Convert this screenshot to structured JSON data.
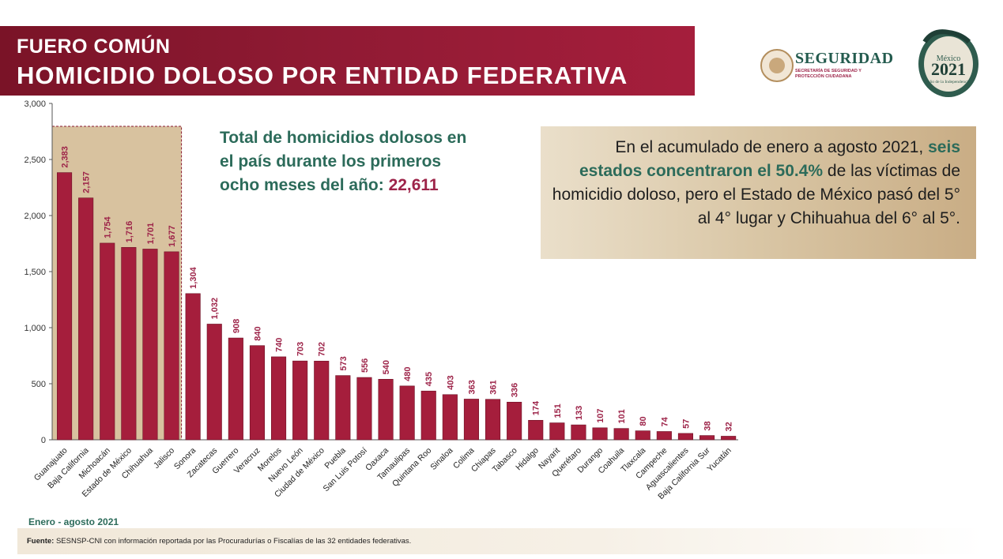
{
  "header": {
    "subtitle": "FUERO COMÚN",
    "title": "HOMICIDIO DOLOSO POR ENTIDAD FEDERATIVA"
  },
  "logos": {
    "seguridad_name": "SEGURIDAD",
    "seguridad_tagline": "SECRETARÍA DE SEGURIDAD Y PROTECCIÓN CIUDADANA",
    "mexico_label": "México",
    "year_label": "2021",
    "year_tagline": "Año de la Independencia"
  },
  "total_callout": {
    "text_before": "Total de homicidios dolosos en el país durante los primeros ocho meses del año: ",
    "total": "22,611"
  },
  "note": {
    "line_before": "En el acumulado de enero a agosto 2021,",
    "highlight": "seis estados concentraron el 50.4%",
    "line_after": " de las víctimas de homicidio doloso, pero el Estado de México pasó del 5° al 4° lugar y Chihuahua del 6° al 5°."
  },
  "footer": {
    "period": "Enero - agosto 2021",
    "source_label": "Fuente:",
    "source_text": " SESNSP-CNI con información reportada por las Procuradurías o Fiscalías de las 32 entidades federativas."
  },
  "colors": {
    "bar": "#a51e3c",
    "accent_green": "#2c6b5a",
    "highlight_box": "#d9c6a5"
  },
  "chart_data": {
    "type": "bar",
    "categories": [
      "Guanajuato",
      "Baja California",
      "Michoacán",
      "Estado de México",
      "Chihuahua",
      "Jalisco",
      "Sonora",
      "Zacatecas",
      "Guerrero",
      "Veracruz",
      "Morelos",
      "Nuevo León",
      "Ciudad de México",
      "Puebla",
      "San Luis Potosí",
      "Oaxaca",
      "Tamaulipas",
      "Quintana Roo",
      "Sinaloa",
      "Colima",
      "Chiapas",
      "Tabasco",
      "Hidalgo",
      "Nayarit",
      "Querétaro",
      "Durango",
      "Coahuila",
      "Tlaxcala",
      "Campeche",
      "Aguascalientes",
      "Baja California Sur",
      "Yucatán"
    ],
    "values": [
      2383,
      2157,
      1754,
      1716,
      1701,
      1677,
      1304,
      1032,
      908,
      840,
      740,
      703,
      702,
      573,
      556,
      540,
      480,
      435,
      403,
      363,
      361,
      336,
      174,
      151,
      133,
      107,
      101,
      80,
      74,
      57,
      38,
      32
    ],
    "value_labels": [
      "2,383",
      "2,157",
      "1,754",
      "1,716",
      "1,701",
      "1,677",
      "1,304",
      "1,032",
      "908",
      "840",
      "740",
      "703",
      "702",
      "573",
      "556",
      "540",
      "480",
      "435",
      "403",
      "363",
      "361",
      "336",
      "174",
      "151",
      "133",
      "107",
      "101",
      "80",
      "74",
      "57",
      "38",
      "32"
    ],
    "yticks": [
      0,
      500,
      1000,
      1500,
      2000,
      2500,
      3000
    ],
    "ytick_labels": [
      "0",
      "500",
      "1,000",
      "1,500",
      "2,000",
      "2,500",
      "3,000"
    ],
    "ylim": [
      0,
      3000
    ],
    "highlighted_count": 6,
    "grid": false,
    "title": "",
    "xlabel": "",
    "ylabel": ""
  }
}
